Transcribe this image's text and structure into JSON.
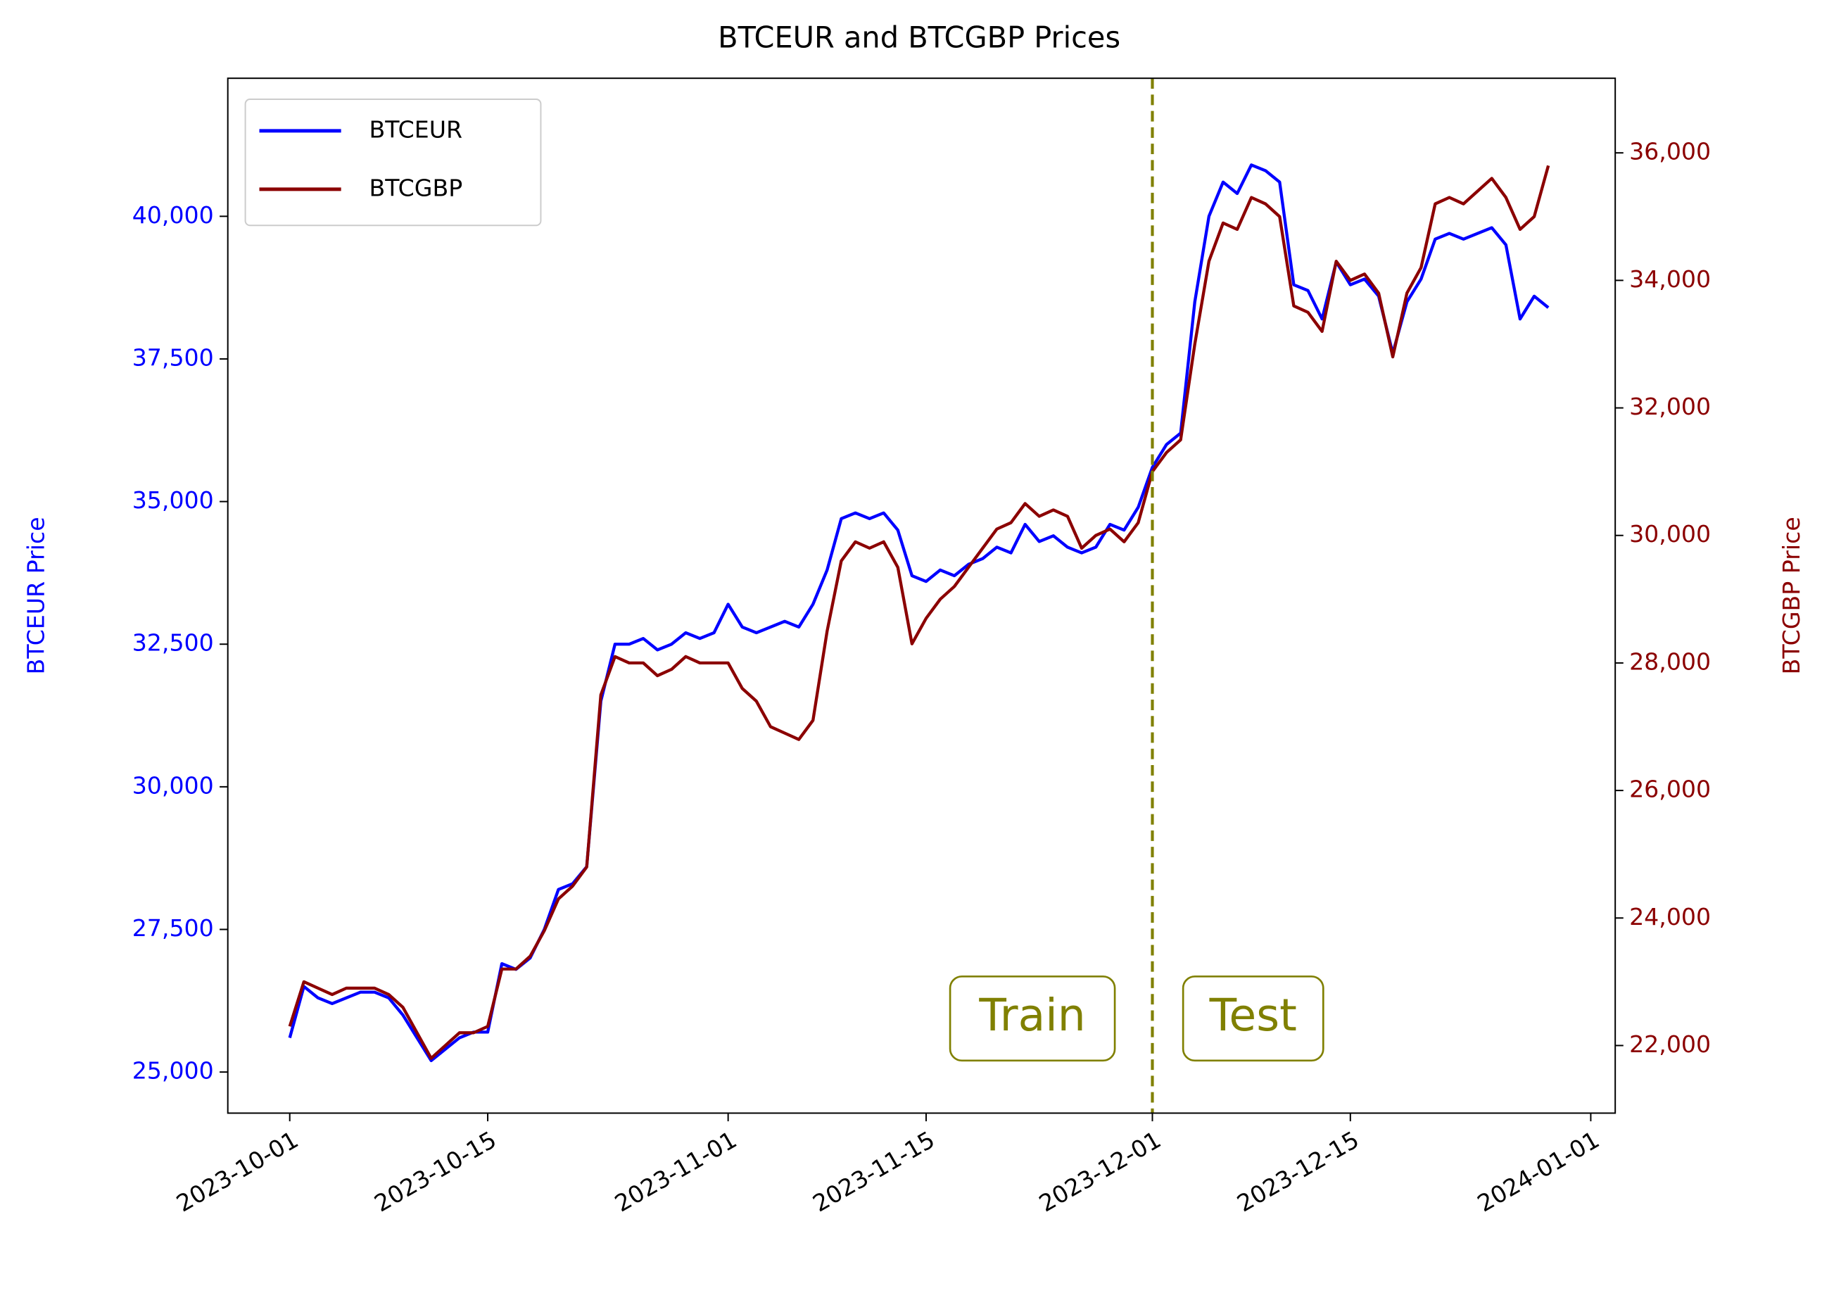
{
  "chart_data": {
    "type": "line",
    "title": "BTCEUR and BTCGBP Prices",
    "y_label": "BTCEUR Price",
    "y2_label": "BTCGBP Price",
    "x": [
      "2023-10-01",
      "2023-10-02",
      "2023-10-03",
      "2023-10-04",
      "2023-10-05",
      "2023-10-06",
      "2023-10-07",
      "2023-10-08",
      "2023-10-09",
      "2023-10-10",
      "2023-10-11",
      "2023-10-12",
      "2023-10-13",
      "2023-10-14",
      "2023-10-15",
      "2023-10-16",
      "2023-10-17",
      "2023-10-18",
      "2023-10-19",
      "2023-10-20",
      "2023-10-21",
      "2023-10-22",
      "2023-10-23",
      "2023-10-24",
      "2023-10-25",
      "2023-10-26",
      "2023-10-27",
      "2023-10-28",
      "2023-10-29",
      "2023-10-30",
      "2023-10-31",
      "2023-11-01",
      "2023-11-02",
      "2023-11-03",
      "2023-11-04",
      "2023-11-05",
      "2023-11-06",
      "2023-11-07",
      "2023-11-08",
      "2023-11-09",
      "2023-11-10",
      "2023-11-11",
      "2023-11-12",
      "2023-11-13",
      "2023-11-14",
      "2023-11-15",
      "2023-11-16",
      "2023-11-17",
      "2023-11-18",
      "2023-11-19",
      "2023-11-20",
      "2023-11-21",
      "2023-11-22",
      "2023-11-23",
      "2023-11-24",
      "2023-11-25",
      "2023-11-26",
      "2023-11-27",
      "2023-11-28",
      "2023-11-29",
      "2023-11-30",
      "2023-12-01",
      "2023-12-02",
      "2023-12-03",
      "2023-12-04",
      "2023-12-05",
      "2023-12-06",
      "2023-12-07",
      "2023-12-08",
      "2023-12-09",
      "2023-12-10",
      "2023-12-11",
      "2023-12-12",
      "2023-12-13",
      "2023-12-14",
      "2023-12-15",
      "2023-12-16",
      "2023-12-17",
      "2023-12-18",
      "2023-12-19",
      "2023-12-20",
      "2023-12-21",
      "2023-12-22",
      "2023-12-23",
      "2023-12-24",
      "2023-12-25",
      "2023-12-26",
      "2023-12-27",
      "2023-12-28",
      "2023-12-29"
    ],
    "series": [
      {
        "name": "BTCEUR",
        "color": "#0000ff",
        "axis": "y",
        "values": [
          25600,
          26500,
          26300,
          26200,
          26300,
          26400,
          26400,
          26300,
          26000,
          25600,
          25200,
          25400,
          25600,
          25700,
          25700,
          26900,
          26800,
          27000,
          27500,
          28200,
          28300,
          28600,
          31500,
          32500,
          32500,
          32600,
          32400,
          32500,
          32700,
          32600,
          32700,
          33200,
          32800,
          32700,
          32800,
          32900,
          32800,
          33200,
          33800,
          34700,
          34800,
          34700,
          34800,
          34500,
          33700,
          33600,
          33800,
          33700,
          33900,
          34000,
          34200,
          34100,
          34600,
          34300,
          34400,
          34200,
          34100,
          34200,
          34600,
          34500,
          34900,
          35600,
          36000,
          36200,
          38500,
          40000,
          40600,
          40400,
          40900,
          40800,
          40600,
          38800,
          38700,
          38200,
          39200,
          38800,
          38900,
          38600,
          37600,
          38500,
          38900,
          39600,
          39700,
          39600,
          39700,
          39800,
          39500,
          38200,
          38600,
          38400
        ]
      },
      {
        "name": "BTCGBP",
        "color": "#8b0000",
        "axis": "y2",
        "values": [
          22300,
          23000,
          22900,
          22800,
          22900,
          22900,
          22900,
          22800,
          22600,
          22200,
          21800,
          22000,
          22200,
          22200,
          22300,
          23200,
          23200,
          23400,
          23800,
          24300,
          24500,
          24800,
          27500,
          28100,
          28000,
          28000,
          27800,
          27900,
          28100,
          28000,
          28000,
          28000,
          27600,
          27400,
          27000,
          26900,
          26800,
          27100,
          28500,
          29600,
          29900,
          29800,
          29900,
          29500,
          28300,
          28700,
          29000,
          29200,
          29500,
          29800,
          30100,
          30200,
          30500,
          30300,
          30400,
          30300,
          29800,
          30000,
          30100,
          29900,
          30200,
          31000,
          31300,
          31500,
          33000,
          34300,
          34900,
          34800,
          35300,
          35200,
          35000,
          33600,
          33500,
          33200,
          34300,
          34000,
          34100,
          33800,
          32800,
          33800,
          34200,
          35200,
          35300,
          35200,
          35400,
          35600,
          35300,
          34800,
          35000,
          35800
        ]
      }
    ],
    "xlim": [
      "2023-09-26T14:53:00Z",
      "2024-01-02T17:30:00Z"
    ],
    "xticks": [
      "2023-10-01",
      "2023-10-15",
      "2023-11-01",
      "2023-11-15",
      "2023-12-01",
      "2023-12-15",
      "2024-01-01"
    ],
    "ylim": [
      24280,
      42420
    ],
    "yticks": [
      {
        "value": 25000,
        "label": "25,000"
      },
      {
        "value": 27500,
        "label": "27,500"
      },
      {
        "value": 30000,
        "label": "30,000"
      },
      {
        "value": 32500,
        "label": "32,500"
      },
      {
        "value": 35000,
        "label": "35,000"
      },
      {
        "value": 37500,
        "label": "37,500"
      },
      {
        "value": 40000,
        "label": "40,000"
      }
    ],
    "y2lim": [
      20940,
      37170
    ],
    "y2ticks": [
      {
        "value": 22000,
        "label": "22,000"
      },
      {
        "value": 24000,
        "label": "24,000"
      },
      {
        "value": 26000,
        "label": "26,000"
      },
      {
        "value": 28000,
        "label": "28,000"
      },
      {
        "value": 30000,
        "label": "30,000"
      },
      {
        "value": 32000,
        "label": "32,000"
      },
      {
        "value": 34000,
        "label": "34,000"
      },
      {
        "value": 36000,
        "label": "36,000"
      }
    ],
    "split": {
      "x": "2023-12-01",
      "color": "#808000",
      "left_label": "Train",
      "right_label": "Test"
    },
    "legend": "upper left",
    "grid": false
  }
}
